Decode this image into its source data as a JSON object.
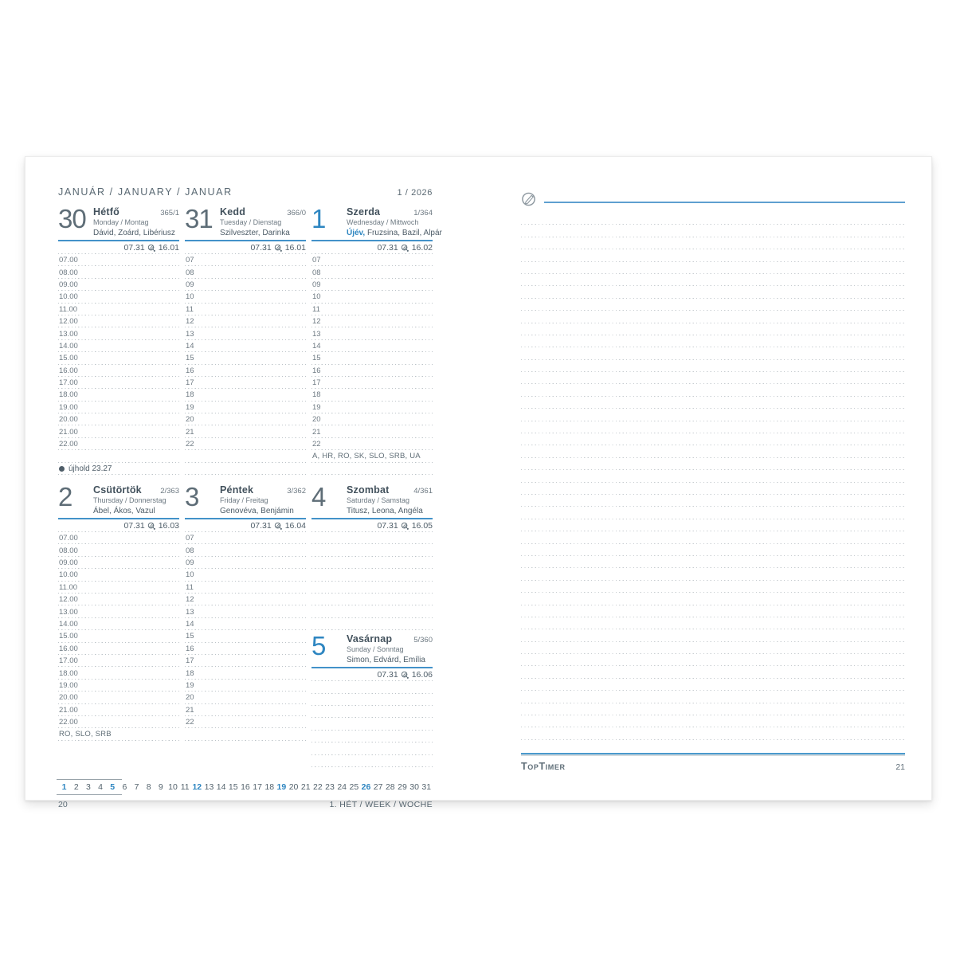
{
  "accent_color": "#2e86c1",
  "page_left": {
    "month_header": "JANUÁR / JANUARY / JANUAR",
    "week_of_year": "1 / 2026",
    "page_number": "20",
    "week_label": "1. HÉT / WEEK / WOCHE",
    "days": [
      {
        "number": "30",
        "name": "Hétfő",
        "day_of_year": "365/1",
        "name_en_de": "Monday / Montag",
        "namedays": "Dávid, Zoárd, Libériusz",
        "sunrise": "07.31",
        "sunset": "16.01",
        "slots": [
          {
            "t": "07.00"
          },
          {
            "t": "08.00"
          },
          {
            "t": "09.00"
          },
          {
            "t": "10.00"
          },
          {
            "t": "11.00"
          },
          {
            "t": "12.00"
          },
          {
            "t": "13.00"
          },
          {
            "t": "14.00"
          },
          {
            "t": "15.00"
          },
          {
            "t": "16.00"
          },
          {
            "t": "17.00"
          },
          {
            "t": "18.00"
          },
          {
            "t": "19.00"
          },
          {
            "t": "20.00"
          },
          {
            "t": "21.00"
          },
          {
            "t": "22.00"
          },
          {
            "e": 1
          },
          {
            "m": "újhold 23.27"
          }
        ]
      },
      {
        "number": "31",
        "name": "Kedd",
        "day_of_year": "366/0",
        "name_en_de": "Tuesday / Dienstag",
        "namedays": "Szilveszter, Darinka",
        "sunrise": "07.31",
        "sunset": "16.01",
        "slots": [
          {
            "t": "07"
          },
          {
            "t": "08"
          },
          {
            "t": "09"
          },
          {
            "t": "10"
          },
          {
            "t": "11"
          },
          {
            "t": "12"
          },
          {
            "t": "13"
          },
          {
            "t": "14"
          },
          {
            "t": "15"
          },
          {
            "t": "16"
          },
          {
            "t": "17"
          },
          {
            "t": "18"
          },
          {
            "t": "19"
          },
          {
            "t": "20"
          },
          {
            "t": "21"
          },
          {
            "t": "22"
          },
          {
            "e": 1
          },
          {
            "e": 1
          }
        ]
      },
      {
        "number": "1",
        "name": "Szerda",
        "day_of_year": "1/364",
        "name_en_de": "Wednesday / Mittwoch",
        "holiday": "Újév,",
        "namedays": "Fruzsina, Bazil, Alpár",
        "sunrise": "07.31",
        "sunset": "16.02",
        "slots": [
          {
            "t": "07"
          },
          {
            "t": "08"
          },
          {
            "t": "09"
          },
          {
            "t": "10"
          },
          {
            "t": "11"
          },
          {
            "t": "12"
          },
          {
            "t": "13"
          },
          {
            "t": "14"
          },
          {
            "t": "15"
          },
          {
            "t": "16"
          },
          {
            "t": "17"
          },
          {
            "t": "18"
          },
          {
            "t": "19"
          },
          {
            "t": "20"
          },
          {
            "t": "21"
          },
          {
            "t": "22"
          },
          {
            "n": "A, HR, RO, SK, SLO, SRB, UA"
          },
          {
            "e": 1
          }
        ]
      },
      {
        "number": "2",
        "name": "Csütörtök",
        "day_of_year": "2/363",
        "name_en_de": "Thursday / Donnerstag",
        "namedays": "Ábel, Ákos, Vazul",
        "sunrise": "07.31",
        "sunset": "16.03",
        "slots": [
          {
            "t": "07.00"
          },
          {
            "t": "08.00"
          },
          {
            "t": "09.00"
          },
          {
            "t": "10.00"
          },
          {
            "t": "11.00"
          },
          {
            "t": "12.00"
          },
          {
            "t": "13.00"
          },
          {
            "t": "14.00"
          },
          {
            "t": "15.00"
          },
          {
            "t": "16.00"
          },
          {
            "t": "17.00"
          },
          {
            "t": "18.00"
          },
          {
            "t": "19.00"
          },
          {
            "t": "20.00"
          },
          {
            "t": "21.00"
          },
          {
            "t": "22.00"
          },
          {
            "n": "RO, SLO, SRB"
          }
        ]
      },
      {
        "number": "3",
        "name": "Péntek",
        "day_of_year": "3/362",
        "name_en_de": "Friday / Freitag",
        "namedays": "Genovéva, Benjámin",
        "sunrise": "07.31",
        "sunset": "16.04",
        "slots": [
          {
            "t": "07"
          },
          {
            "t": "08"
          },
          {
            "t": "09"
          },
          {
            "t": "10"
          },
          {
            "t": "11"
          },
          {
            "t": "12"
          },
          {
            "t": "13"
          },
          {
            "t": "14"
          },
          {
            "t": "15"
          },
          {
            "t": "16"
          },
          {
            "t": "17"
          },
          {
            "t": "18"
          },
          {
            "t": "19"
          },
          {
            "t": "20"
          },
          {
            "t": "21"
          },
          {
            "t": "22"
          },
          {
            "e": 1
          }
        ]
      },
      {
        "number": "4",
        "name": "Szombat",
        "day_of_year": "4/361",
        "name_en_de": "Saturday / Samstag",
        "namedays": "Titusz, Leona, Angéla",
        "sunrise": "07.31",
        "sunset": "16.05",
        "slots": [
          {
            "e": 1
          },
          {
            "e": 1
          },
          {
            "e": 1
          },
          {
            "e": 1
          },
          {
            "e": 1
          },
          {
            "e": 1
          },
          {
            "e": 1
          },
          {
            "e": 1
          }
        ]
      },
      {
        "number": "5",
        "name": "Vasárnap",
        "day_of_year": "5/360",
        "name_en_de": "Sunday / Sonntag",
        "namedays": "Simon, Edvárd, Emília",
        "sunrise": "07.31",
        "sunset": "16.06",
        "slots": [
          {
            "e": 1
          },
          {
            "e": 1
          },
          {
            "e": 1
          },
          {
            "e": 1
          },
          {
            "e": 1
          },
          {
            "e": 1
          },
          {
            "e": 1
          }
        ]
      }
    ],
    "minicalendar": {
      "days": [
        "1",
        "2",
        "3",
        "4",
        "5",
        "6",
        "7",
        "8",
        "9",
        "10",
        "11",
        "12",
        "13",
        "14",
        "15",
        "16",
        "17",
        "18",
        "19",
        "20",
        "21",
        "22",
        "23",
        "24",
        "25",
        "26",
        "27",
        "28",
        "29",
        "30",
        "31"
      ],
      "highlighted": [
        "1",
        "5",
        "12",
        "19",
        "26"
      ],
      "boxed_count": 5
    }
  },
  "page_right": {
    "page_number": "21",
    "brand": "TopTimer",
    "lines_count": 43
  },
  "icons": {
    "new_moon": "●",
    "sunset": "sunset-icon",
    "pencil_clip": "pencil-circle-icon"
  }
}
